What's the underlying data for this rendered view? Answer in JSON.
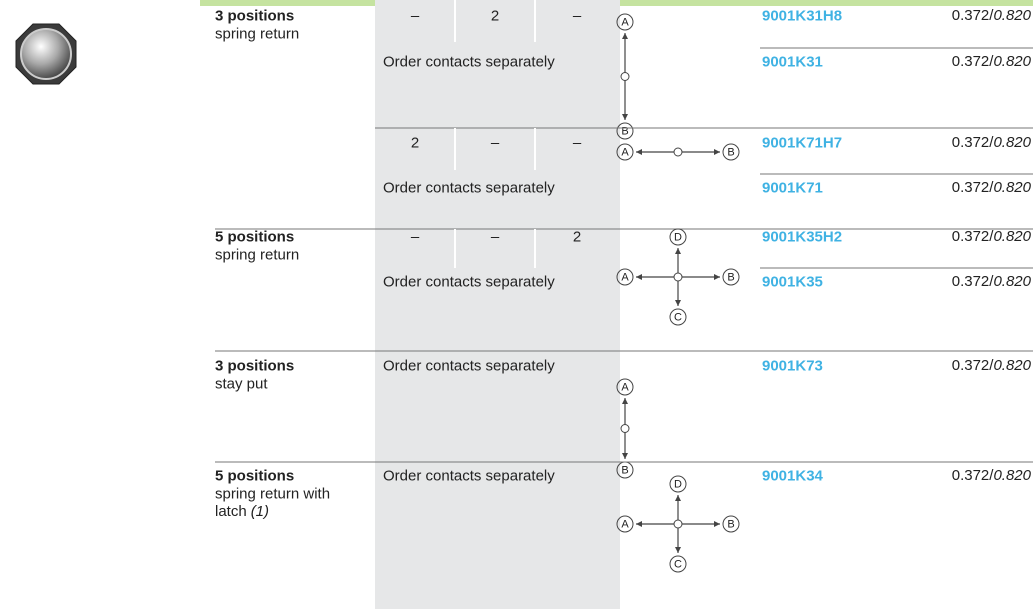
{
  "rows": [
    {
      "title": "3 positions",
      "subtitle": "spring return",
      "blocks": [
        {
          "contacts": [
            "–",
            "2",
            "–"
          ],
          "note": "Order contacts separately",
          "diagram": [
            "A",
            "B"
          ],
          "items": [
            {
              "ref": "9001K31H8",
              "weight": "0.372/",
              "weight_italic": "0.820"
            },
            {
              "ref": "9001K31",
              "weight": "0.372/",
              "weight_italic": "0.820"
            }
          ]
        },
        {
          "contacts": [
            "2",
            "–",
            "–"
          ],
          "note": "Order contacts separately",
          "diagram": [
            "A",
            "B"
          ],
          "items": [
            {
              "ref": "9001K71H7",
              "weight": "0.372/",
              "weight_italic": "0.820"
            },
            {
              "ref": "9001K71",
              "weight": "0.372/",
              "weight_italic": "0.820"
            }
          ]
        }
      ]
    },
    {
      "title": "5 positions",
      "subtitle": "spring return",
      "blocks": [
        {
          "contacts": [
            "–",
            "–",
            "2"
          ],
          "note": "Order contacts separately",
          "diagram": [
            "D",
            "A",
            "B",
            "C"
          ],
          "items": [
            {
              "ref": "9001K35H2",
              "weight": "0.372/",
              "weight_italic": "0.820"
            },
            {
              "ref": "9001K35",
              "weight": "0.372/",
              "weight_italic": "0.820"
            }
          ]
        }
      ]
    },
    {
      "title": "3 positions",
      "subtitle": "stay put",
      "blocks": [
        {
          "note": "Order contacts separately",
          "diagram": [
            "A",
            "B"
          ],
          "items": [
            {
              "ref": "9001K73",
              "weight": "0.372/",
              "weight_italic": "0.820"
            }
          ]
        }
      ]
    },
    {
      "title": "5 positions",
      "subtitle": "spring return with",
      "subtitle_line2": "latch",
      "subtitle_italic": "(1)",
      "blocks": [
        {
          "note": "Order contacts separately",
          "diagram": [
            "D",
            "A",
            "B",
            "C"
          ],
          "items": [
            {
              "ref": "9001K34",
              "weight": "0.372/",
              "weight_italic": "0.820"
            }
          ]
        }
      ]
    }
  ]
}
